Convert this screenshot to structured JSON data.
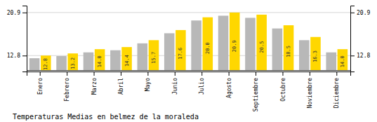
{
  "chart_data": {
    "type": "bar",
    "title": "Temperaturas Medias en belmez de la moraleda",
    "categories": [
      "Enero",
      "Febrero",
      "Marzo",
      "Abril",
      "Mayo",
      "Junio",
      "Julio",
      "Agosto",
      "Septiembre",
      "Octubre",
      "Noviembre",
      "Diciembre"
    ],
    "series": [
      {
        "color": "#B8B8B8",
        "values": [
          12.3,
          12.7,
          13.4,
          13.8,
          15.1,
          17.0,
          19.4,
          20.3,
          19.9,
          17.9,
          15.7,
          13.4
        ]
      },
      {
        "color": "#FFD700",
        "values": [
          12.8,
          13.2,
          14.0,
          14.4,
          15.7,
          17.6,
          20.0,
          20.9,
          20.5,
          18.5,
          16.3,
          14.0
        ],
        "data_labels": true,
        "value_labels": [
          "12.8",
          "13.2",
          "14.0",
          "14.4",
          "15.7",
          "17.6",
          "20.0",
          "20.9",
          "20.5",
          "18.5",
          "16.3",
          "14.0"
        ]
      }
    ],
    "baseline": 10.0,
    "ylim": [
      9.8,
      22.2
    ],
    "yticks": [
      12.8,
      20.9
    ],
    "y2lim": [
      9.8,
      22.2
    ],
    "y2ticks": [
      12.8,
      20.9
    ],
    "grid": true
  }
}
